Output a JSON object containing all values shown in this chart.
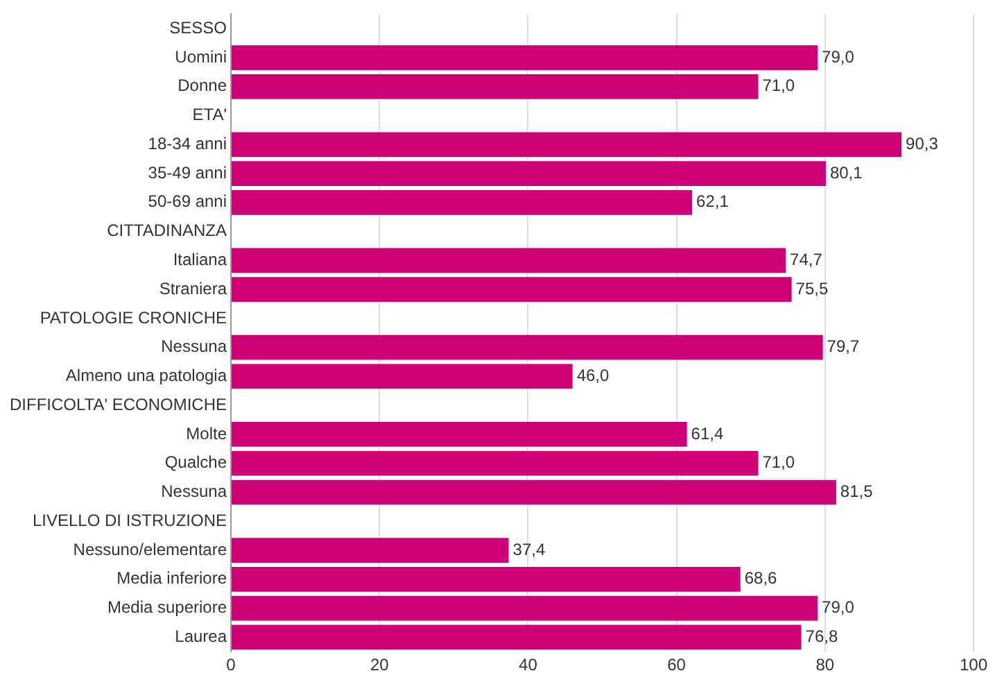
{
  "chart_data": {
    "type": "bar",
    "orientation": "horizontal",
    "categories": [
      "SESSO",
      "Uomini",
      "Donne",
      "ETA'",
      "18-34 anni",
      "35-49 anni",
      "50-69 anni",
      "CITTADINANZA",
      "Italiana",
      "Straniera",
      "PATOLOGIE CRONICHE",
      "Nessuna",
      "Almeno una patologia",
      "DIFFICOLTA' ECONOMICHE",
      "Molte",
      "Qualche",
      "Nessuna",
      "LIVELLO DI ISTRUZIONE",
      "Nessuno/elementare",
      "Media inferiore",
      "Media superiore",
      "Laurea"
    ],
    "values": [
      null,
      79.0,
      71.0,
      null,
      90.3,
      80.1,
      62.1,
      null,
      74.7,
      75.5,
      null,
      79.7,
      46.0,
      null,
      61.4,
      71.0,
      81.5,
      null,
      37.4,
      68.6,
      79.0,
      76.8
    ],
    "value_labels": [
      null,
      "79,0",
      "71,0",
      null,
      "90,3",
      "80,1",
      "62,1",
      null,
      "74,7",
      "75,5",
      null,
      "79,7",
      "46,0",
      null,
      "61,4",
      "71,0",
      "81,5",
      null,
      "37,4",
      "68,6",
      "79,0",
      "76,8"
    ],
    "color": "#cc0077",
    "xlim": [
      0,
      100
    ],
    "xticks": [
      0,
      20,
      40,
      60,
      80,
      100
    ],
    "grid": "x",
    "legend": false
  }
}
